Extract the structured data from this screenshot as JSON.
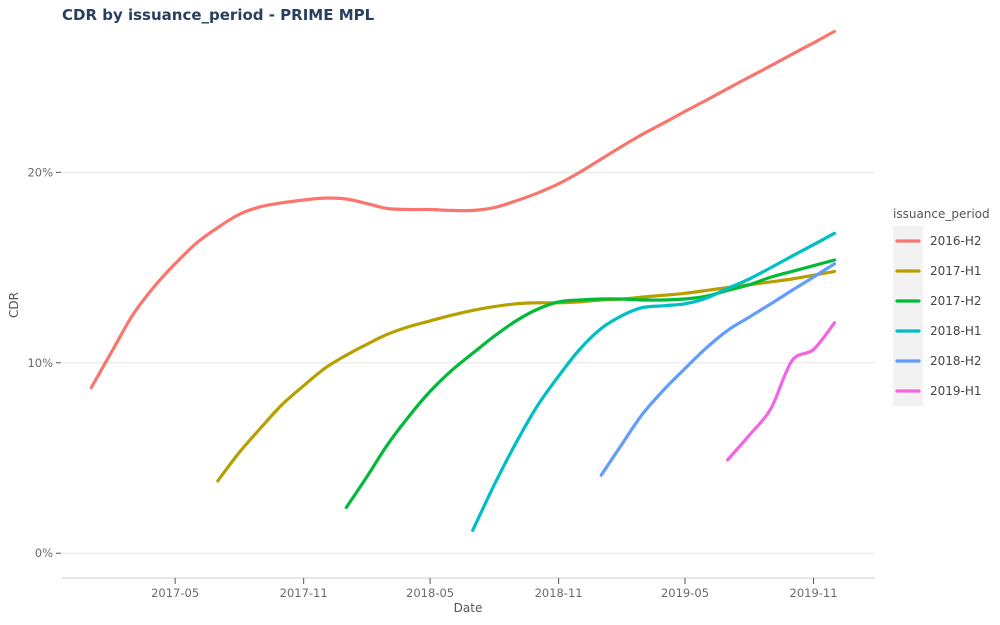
{
  "chart_data": {
    "type": "line",
    "title": "CDR by issuance_period - PRIME MPL",
    "xlabel": "Date",
    "ylabel": "CDR",
    "x_ticks": [
      "2017-05",
      "2017-11",
      "2018-05",
      "2018-11",
      "2019-05",
      "2019-11"
    ],
    "y_ticks": [
      {
        "value": 0,
        "label": "0%"
      },
      {
        "value": 10,
        "label": "10%"
      },
      {
        "value": 20,
        "label": "20%"
      }
    ],
    "xlim": [
      "2016-11-20",
      "2020-01-28"
    ],
    "ylim": [
      -1.3,
      28
    ],
    "grid": "horizontal",
    "legend": {
      "title": "issuance_period",
      "placement": "right"
    },
    "series": [
      {
        "name": "2016-H2",
        "color": "#F8766D",
        "points": [
          [
            "2017-01",
            8.7
          ],
          [
            "2017-02",
            10.7
          ],
          [
            "2017-03",
            12.5
          ],
          [
            "2017-04",
            14.0
          ],
          [
            "2017-05",
            15.2
          ],
          [
            "2017-06",
            16.3
          ],
          [
            "2017-07",
            17.1
          ],
          [
            "2017-08",
            17.8
          ],
          [
            "2017-09",
            18.2
          ],
          [
            "2017-10",
            18.4
          ],
          [
            "2017-11",
            18.55
          ],
          [
            "2017-12",
            18.65
          ],
          [
            "2018-01",
            18.6
          ],
          [
            "2018-02",
            18.35
          ],
          [
            "2018-03",
            18.1
          ],
          [
            "2018-04",
            18.05
          ],
          [
            "2018-05",
            18.05
          ],
          [
            "2018-06",
            18.0
          ],
          [
            "2018-07",
            18.0
          ],
          [
            "2018-08",
            18.15
          ],
          [
            "2018-09",
            18.5
          ],
          [
            "2018-10",
            18.9
          ],
          [
            "2018-11",
            19.4
          ],
          [
            "2018-12",
            20.0
          ],
          [
            "2019-01",
            20.7
          ],
          [
            "2019-02",
            21.4
          ],
          [
            "2019-03",
            22.0
          ],
          [
            "2019-04",
            22.6
          ],
          [
            "2019-05",
            23.2
          ],
          [
            "2019-06",
            23.8
          ],
          [
            "2019-07",
            24.4
          ],
          [
            "2019-08",
            25.0
          ],
          [
            "2019-09",
            25.6
          ],
          [
            "2019-10",
            26.2
          ],
          [
            "2019-11",
            26.8
          ],
          [
            "2019-12",
            27.4
          ]
        ]
      },
      {
        "name": "2017-H1",
        "color": "#B79F00",
        "points": [
          [
            "2017-07",
            3.8
          ],
          [
            "2017-08",
            5.3
          ],
          [
            "2017-09",
            6.6
          ],
          [
            "2017-10",
            7.8
          ],
          [
            "2017-11",
            8.8
          ],
          [
            "2017-12",
            9.7
          ],
          [
            "2018-01",
            10.4
          ],
          [
            "2018-02",
            11.0
          ],
          [
            "2018-03",
            11.5
          ],
          [
            "2018-04",
            11.9
          ],
          [
            "2018-05",
            12.2
          ],
          [
            "2018-06",
            12.5
          ],
          [
            "2018-07",
            12.75
          ],
          [
            "2018-08",
            12.95
          ],
          [
            "2018-09",
            13.1
          ],
          [
            "2018-10",
            13.15
          ],
          [
            "2018-11",
            13.15
          ],
          [
            "2018-12",
            13.2
          ],
          [
            "2019-01",
            13.3
          ],
          [
            "2019-02",
            13.35
          ],
          [
            "2019-03",
            13.45
          ],
          [
            "2019-04",
            13.55
          ],
          [
            "2019-05",
            13.65
          ],
          [
            "2019-06",
            13.8
          ],
          [
            "2019-07",
            13.95
          ],
          [
            "2019-08",
            14.1
          ],
          [
            "2019-09",
            14.25
          ],
          [
            "2019-10",
            14.4
          ],
          [
            "2019-11",
            14.6
          ],
          [
            "2019-12",
            14.8
          ]
        ]
      },
      {
        "name": "2017-H2",
        "color": "#00BA38",
        "points": [
          [
            "2018-01",
            2.4
          ],
          [
            "2018-02",
            4.1
          ],
          [
            "2018-03",
            5.7
          ],
          [
            "2018-04",
            7.2
          ],
          [
            "2018-05",
            8.5
          ],
          [
            "2018-06",
            9.6
          ],
          [
            "2018-07",
            10.5
          ],
          [
            "2018-08",
            11.4
          ],
          [
            "2018-09",
            12.2
          ],
          [
            "2018-10",
            12.8
          ],
          [
            "2018-11",
            13.2
          ],
          [
            "2018-12",
            13.3
          ],
          [
            "2019-01",
            13.35
          ],
          [
            "2019-02",
            13.35
          ],
          [
            "2019-03",
            13.3
          ],
          [
            "2019-04",
            13.3
          ],
          [
            "2019-05",
            13.35
          ],
          [
            "2019-06",
            13.5
          ],
          [
            "2019-07",
            13.8
          ],
          [
            "2019-08",
            14.1
          ],
          [
            "2019-09",
            14.5
          ],
          [
            "2019-10",
            14.8
          ],
          [
            "2019-11",
            15.1
          ],
          [
            "2019-12",
            15.4
          ]
        ]
      },
      {
        "name": "2018-H1",
        "color": "#00BFC4",
        "points": [
          [
            "2018-07",
            1.2
          ],
          [
            "2018-08",
            3.6
          ],
          [
            "2018-09",
            5.8
          ],
          [
            "2018-10",
            7.7
          ],
          [
            "2018-11",
            9.3
          ],
          [
            "2018-12",
            10.7
          ],
          [
            "2019-01",
            11.8
          ],
          [
            "2019-02",
            12.5
          ],
          [
            "2019-03",
            12.9
          ],
          [
            "2019-04",
            13.0
          ],
          [
            "2019-05",
            13.1
          ],
          [
            "2019-06",
            13.4
          ],
          [
            "2019-07",
            13.9
          ],
          [
            "2019-08",
            14.4
          ],
          [
            "2019-09",
            15.0
          ],
          [
            "2019-10",
            15.6
          ],
          [
            "2019-11",
            16.2
          ],
          [
            "2019-12",
            16.8
          ]
        ]
      },
      {
        "name": "2018-H2",
        "color": "#619CFF",
        "points": [
          [
            "2019-01",
            4.1
          ],
          [
            "2019-02",
            5.8
          ],
          [
            "2019-03",
            7.3
          ],
          [
            "2019-04",
            8.6
          ],
          [
            "2019-05",
            9.7
          ],
          [
            "2019-06",
            10.8
          ],
          [
            "2019-07",
            11.7
          ],
          [
            "2019-08",
            12.4
          ],
          [
            "2019-09",
            13.1
          ],
          [
            "2019-10",
            13.8
          ],
          [
            "2019-11",
            14.5
          ],
          [
            "2019-12",
            15.2
          ]
        ]
      },
      {
        "name": "2019-H1",
        "color": "#F564E3",
        "points": [
          [
            "2019-07",
            4.9
          ],
          [
            "2019-08",
            6.2
          ],
          [
            "2019-09",
            7.6
          ],
          [
            "2019-10",
            10.1
          ],
          [
            "2019-11",
            10.7
          ],
          [
            "2019-12",
            12.1
          ]
        ]
      }
    ]
  }
}
